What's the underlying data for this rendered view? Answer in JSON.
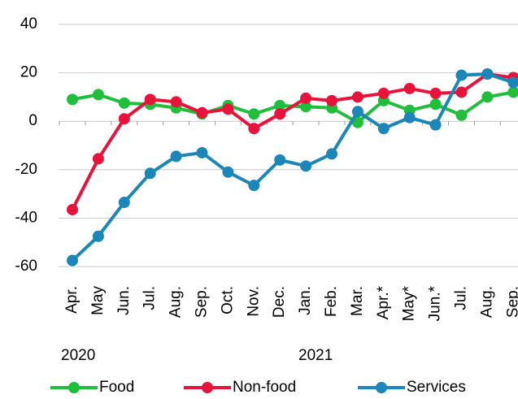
{
  "chart_data": {
    "type": "line",
    "categories": [
      "Apr.",
      "May",
      "Jun.",
      "Jul.",
      "Aug.",
      "Sep.",
      "Oct.",
      "Nov.",
      "Dec.",
      "Jan.",
      "Feb.",
      "Mar.",
      "Apr.*",
      "May*",
      "Jun.*",
      "Jul.",
      "Aug.",
      "Sep."
    ],
    "year_labels": [
      "2020",
      "2021"
    ],
    "series": [
      {
        "name": "Food",
        "color": "#1fbf3c",
        "values": [
          9,
          11,
          7.5,
          7,
          5.5,
          3,
          6.5,
          3,
          6.5,
          6,
          5.5,
          -0.5,
          8.5,
          4.5,
          7,
          2.5,
          10,
          12
        ]
      },
      {
        "name": "Non-food",
        "color": "#e8133a",
        "values": [
          -36.5,
          -15.5,
          1,
          9,
          8,
          3.5,
          5,
          -3,
          3,
          9.5,
          8.5,
          10,
          11.5,
          13.5,
          11.5,
          12,
          19.5,
          18
        ]
      },
      {
        "name": "Services",
        "color": "#1b86b8",
        "values": [
          -57.5,
          -47.5,
          -33.5,
          -21.5,
          -14.5,
          -13,
          -21,
          -26.5,
          -16,
          -18.5,
          -13.5,
          4,
          -3,
          1.5,
          -1.5,
          19,
          19.5,
          16
        ]
      }
    ],
    "ylim": [
      -60,
      40
    ],
    "yticks": [
      -60,
      -40,
      -20,
      0,
      20,
      40
    ],
    "grid": true,
    "legend": "bottom"
  }
}
